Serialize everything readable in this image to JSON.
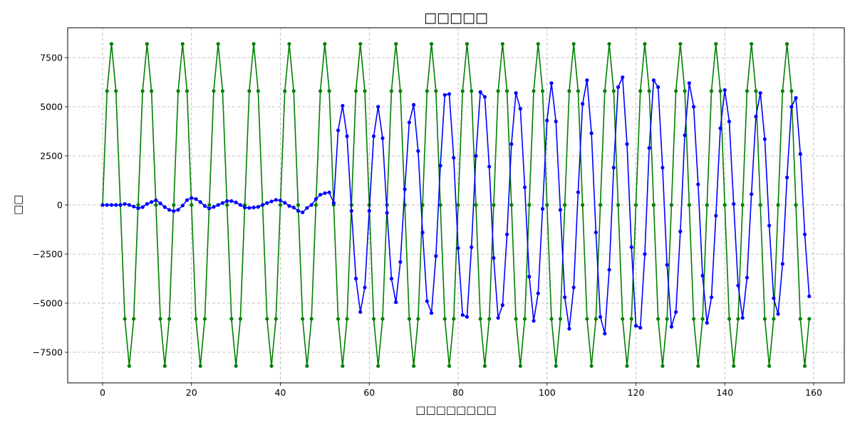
{
  "chart_data": {
    "type": "line",
    "title": "□□□□□",
    "xlabel": "□□□□□□□□",
    "ylabel": "□□",
    "xlim": [
      -8,
      167
    ],
    "ylim": [
      -9000,
      9000
    ],
    "x_ticks": [
      0,
      20,
      40,
      60,
      80,
      100,
      120,
      140,
      160
    ],
    "y_ticks": [
      -7500,
      -5000,
      -2500,
      0,
      2500,
      5000,
      7500
    ],
    "x_tick_labels": [
      "0",
      "20",
      "40",
      "60",
      "80",
      "100",
      "120",
      "140",
      "160"
    ],
    "y_tick_labels": [
      "−7500",
      "−5000",
      "−2500",
      "0",
      "2500",
      "5000",
      "7500"
    ],
    "grid": true,
    "legend": null,
    "series": [
      {
        "name": "green-series",
        "color": "#008000",
        "marker": "circle",
        "x_start": 0,
        "values": [
          0,
          5800,
          8200,
          5800,
          0,
          -5800,
          -8200,
          -5800,
          0,
          5800,
          8200,
          5800,
          0,
          -5800,
          -8200,
          -5800,
          0,
          5800,
          8200,
          5800,
          0,
          -5800,
          -8200,
          -5800,
          0,
          5800,
          8200,
          5800,
          0,
          -5800,
          -8200,
          -5800,
          0,
          5800,
          8200,
          5800,
          0,
          -5800,
          -8200,
          -5800,
          0,
          5800,
          8200,
          5800,
          0,
          -5800,
          -8200,
          -5800,
          0,
          5800,
          8200,
          5800,
          0,
          -5800,
          -8200,
          -5800,
          0,
          5800,
          8200,
          5800,
          0,
          -5800,
          -8200,
          -5800,
          0,
          5800,
          8200,
          5800,
          0,
          -5800,
          -8200,
          -5800,
          0,
          5800,
          8200,
          5800,
          0,
          -5800,
          -8200,
          -5800,
          0,
          5800,
          8200,
          5800,
          0,
          -5800,
          -8200,
          -5800,
          0,
          5800,
          8200,
          5800,
          0,
          -5800,
          -8200,
          -5800,
          0,
          5800,
          8200,
          5800,
          0,
          -5800,
          -8200,
          -5800,
          0,
          5800,
          8200,
          5800,
          0,
          -5800,
          -8200,
          -5800,
          0,
          5800,
          8200,
          5800,
          0,
          -5800,
          -8200,
          -5800,
          0,
          5800,
          8200,
          5800,
          0,
          -5800,
          -8200,
          -5800,
          0,
          5800,
          8200,
          5800,
          0,
          -5800,
          -8200,
          -5800,
          0,
          5800,
          8200,
          5800,
          0,
          -5800,
          -8200,
          -5800,
          0,
          5800,
          8200,
          5800,
          0,
          -5800,
          -8200,
          -5800,
          0,
          5800,
          8200,
          5800,
          0,
          -5800,
          -8200,
          -5800
        ]
      },
      {
        "name": "blue-series",
        "color": "#0000ff",
        "marker": "circle",
        "x_start": 0,
        "values": [
          0,
          0,
          0,
          0,
          0,
          50,
          0,
          -80,
          -170,
          -110,
          50,
          150,
          240,
          80,
          -110,
          -250,
          -310,
          -250,
          -30,
          250,
          360,
          300,
          150,
          -50,
          -180,
          -100,
          0,
          100,
          200,
          200,
          130,
          0,
          -130,
          -150,
          -130,
          -100,
          0,
          100,
          180,
          260,
          230,
          110,
          -50,
          -130,
          -300,
          -380,
          -150,
          0,
          300,
          520,
          600,
          640,
          100,
          3800,
          5050,
          3500,
          -300,
          -3750,
          -5450,
          -4200,
          -300,
          3500,
          5000,
          3400,
          -400,
          -3750,
          -4950,
          -2900,
          800,
          4200,
          5100,
          2750,
          -1400,
          -4900,
          -5500,
          -2600,
          2000,
          5600,
          5650,
          2400,
          -2200,
          -5600,
          -5700,
          -2150,
          2500,
          5750,
          5500,
          1950,
          -2700,
          -5750,
          -5100,
          -1500,
          3100,
          5700,
          4900,
          900,
          -3650,
          -5900,
          -4500,
          -200,
          4300,
          6200,
          4250,
          -250,
          -4700,
          -6300,
          -4200,
          650,
          5150,
          6350,
          3650,
          -1400,
          -5700,
          -6550,
          -3300,
          1900,
          6000,
          6500,
          3100,
          -2150,
          -6150,
          -6250,
          -2500,
          2900,
          6350,
          6000,
          1900,
          -3050,
          -6200,
          -5450,
          -1350,
          3550,
          6200,
          5000,
          1050,
          -3600,
          -6000,
          -4700,
          -550,
          3900,
          5850,
          4250,
          50,
          -4100,
          -5750,
          -3700,
          550,
          4500,
          5700,
          3350,
          -1050,
          -4750,
          -5550,
          -3000,
          1400,
          5000,
          5450,
          2600,
          -1500,
          -4650
        ]
      }
    ]
  }
}
